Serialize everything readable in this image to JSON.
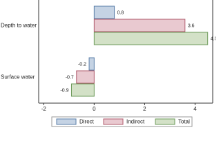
{
  "chart_data": {
    "type": "hbar",
    "categories": [
      "Depth to water",
      "Surface water"
    ],
    "series": [
      {
        "name": "Direct",
        "color": "#c5d3e4",
        "values": [
          0.8,
          -0.2
        ]
      },
      {
        "name": "Indirect",
        "color": "#e9c9d0",
        "values": [
          3.6,
          -0.7
        ]
      },
      {
        "name": "Total",
        "color": "#d3e1c7",
        "values": [
          4.5,
          -0.9
        ]
      }
    ],
    "xlim": [
      -2.2,
      4.7
    ],
    "xticks": [
      -2,
      0,
      2,
      4
    ],
    "legend": "bottom"
  }
}
